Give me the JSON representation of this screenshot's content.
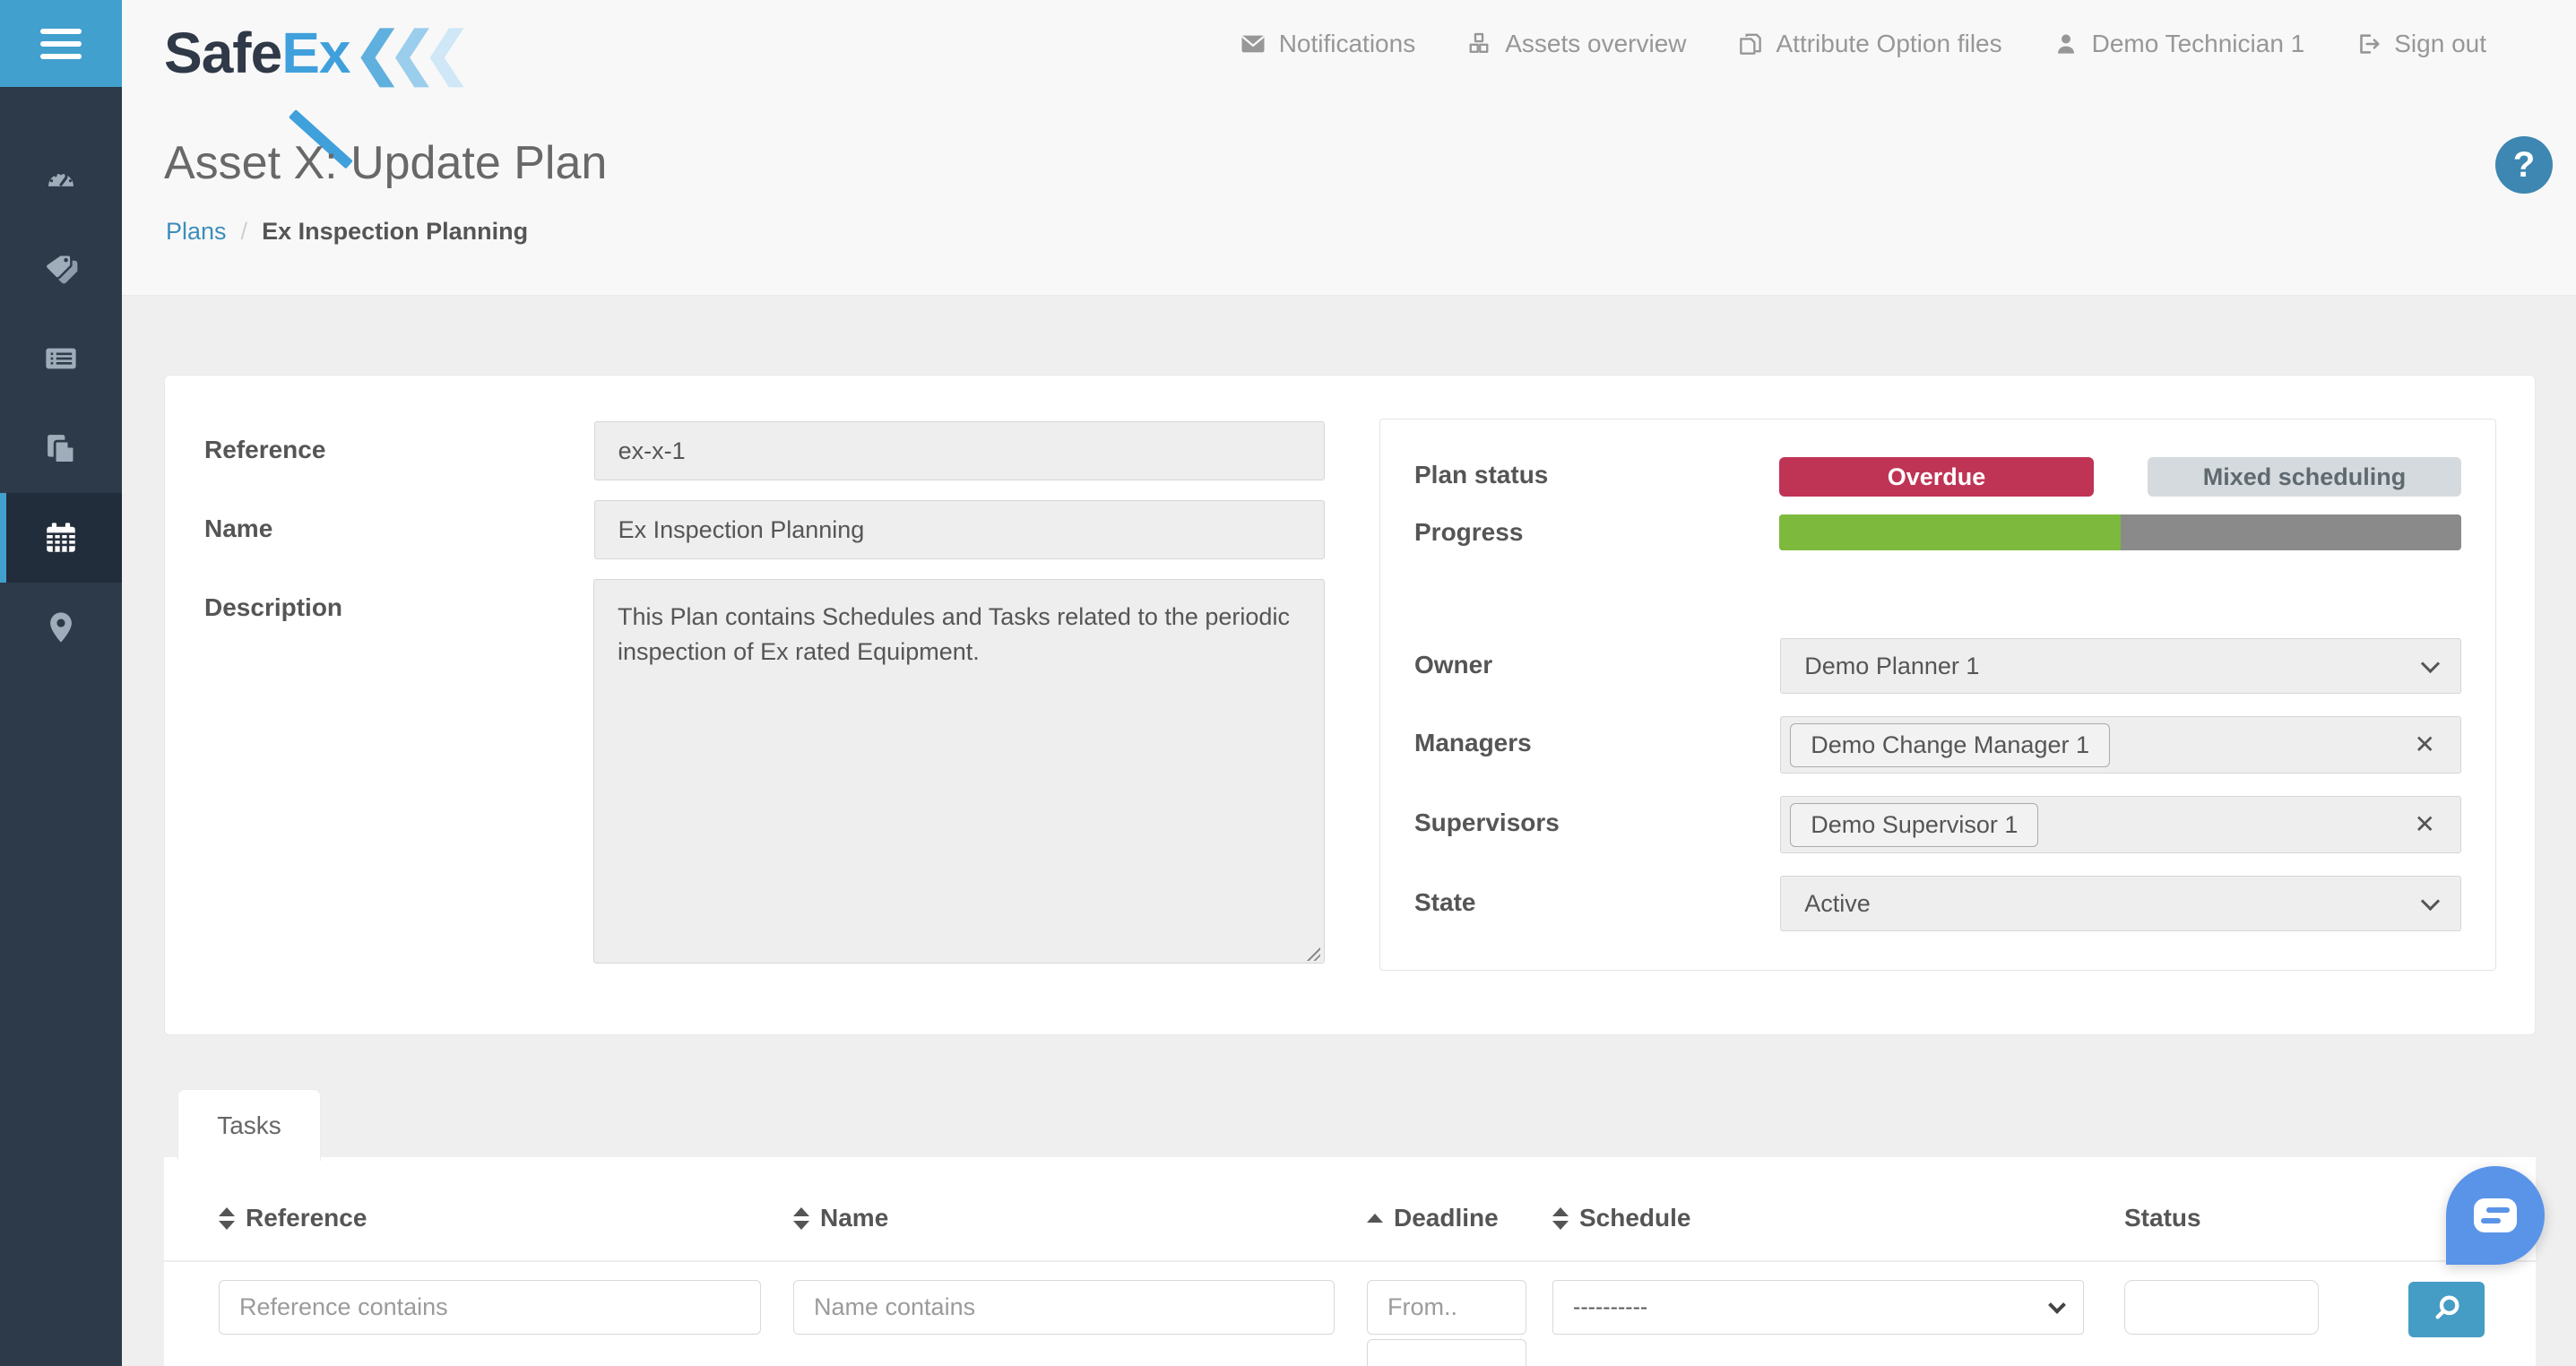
{
  "brand": {
    "name_primary": "Safe",
    "name_secondary": "Ex",
    "chevrons": "«"
  },
  "sidebar": {
    "items": [
      {
        "icon": "menu-icon"
      },
      {
        "icon": "dashboard-icon",
        "active": false
      },
      {
        "icon": "tags-icon",
        "active": false
      },
      {
        "icon": "list-icon",
        "active": false
      },
      {
        "icon": "copy-icon",
        "active": false
      },
      {
        "icon": "calendar-icon",
        "active": true
      },
      {
        "icon": "location-pin-icon",
        "active": false
      }
    ]
  },
  "nav": {
    "items": [
      {
        "icon": "envelope-icon",
        "label": "Notifications"
      },
      {
        "icon": "cubes-icon",
        "label": "Assets overview"
      },
      {
        "icon": "copy-files-icon",
        "label": "Attribute Option files"
      },
      {
        "icon": "user-icon",
        "label": "Demo Technician 1"
      },
      {
        "icon": "sign-out-icon",
        "label": "Sign out"
      }
    ]
  },
  "page": {
    "title": "Asset X: Update Plan",
    "breadcrumb": {
      "link": "Plans",
      "separator": "/",
      "current": "Ex Inspection Planning"
    },
    "help_label": "?"
  },
  "form": {
    "reference": {
      "label": "Reference",
      "value": "ex-x-1"
    },
    "name": {
      "label": "Name",
      "value": "Ex Inspection Planning"
    },
    "description": {
      "label": "Description",
      "value": "This Plan contains Schedules and Tasks related to the periodic inspection of Ex rated Equipment."
    }
  },
  "plan_panel": {
    "status": {
      "label": "Plan status",
      "badges": [
        {
          "text": "Overdue",
          "bg": "#bf3455",
          "color": "#ffffff"
        },
        {
          "text": "Mixed scheduling",
          "bg": "#d5dade",
          "color": "#5f6a70"
        }
      ]
    },
    "progress": {
      "label": "Progress",
      "percent": 50,
      "bar_color": "#7cb93d",
      "track_color": "#8a8a8a"
    },
    "owner": {
      "label": "Owner",
      "value": "Demo Planner 1"
    },
    "managers": {
      "label": "Managers",
      "chips": [
        "Demo Change Manager 1"
      ],
      "remove_icon": "✕"
    },
    "supervisors": {
      "label": "Supervisors",
      "chips": [
        "Demo Supervisor 1"
      ],
      "remove_icon": "✕"
    },
    "state": {
      "label": "State",
      "value": "Active"
    }
  },
  "tasks": {
    "tab_label": "Tasks",
    "columns": [
      {
        "label": "Reference",
        "sort": "both"
      },
      {
        "label": "Name",
        "sort": "both"
      },
      {
        "label": "Deadline",
        "sort": "asc"
      },
      {
        "label": "Schedule",
        "sort": "both"
      },
      {
        "label": "Status",
        "sort": "none"
      }
    ],
    "filters": {
      "reference_placeholder": "Reference contains",
      "name_placeholder": "Name contains",
      "deadline_from_placeholder": "From..",
      "schedule_value": "----------",
      "status_value": ""
    }
  },
  "colors": {
    "accent_blue": "#41a0ce",
    "sidebar_bg": "#2d3a4a",
    "link_blue": "#3c8dbc",
    "overdue_red": "#bf3455",
    "mixed_gray": "#d5dade",
    "progress_green": "#7cb93d",
    "progress_gray": "#8a8a8a",
    "search_button_blue": "#459cc4",
    "help_button_blue": "#3d87b2",
    "chat_button_blue": "#5a94e8"
  }
}
